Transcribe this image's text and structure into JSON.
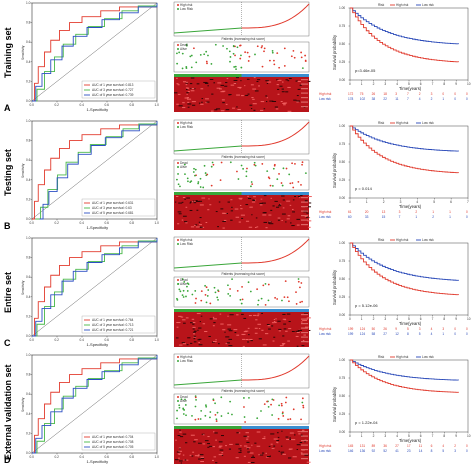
{
  "rows": [
    {
      "letter": "A",
      "label": "Training set",
      "roc": {
        "xlabel": "1-Specificity",
        "ylabel": "Sensitivity",
        "legend": [
          "AUC of 1 year survival: 0.813",
          "AUC of 3 year survival: 0.727",
          "AUC of 5 year survival: 0.739"
        ]
      },
      "risk": {
        "legend1": [
          "High risk",
          "Low Risk"
        ],
        "legend2": [
          "Dead",
          "Alive"
        ],
        "xlabel": "Patients (increasing risk score)"
      },
      "km": {
        "legend_title": "Risk",
        "legend": [
          "High risk",
          "Low risk"
        ],
        "pvalue": "p=3.46e-05",
        "xlabel": "Time(years)",
        "ylabel": "Survival probability",
        "yticks": [
          "0.00",
          "0.25",
          "0.50",
          "0.75",
          "1.00"
        ],
        "xticks": [
          "0",
          "1",
          "2",
          "3",
          "4",
          "5",
          "6",
          "7",
          "8",
          "9",
          "10"
        ],
        "table_labels": [
          "High risk",
          "Low risk"
        ],
        "table_high": [
          "172",
          "75",
          "26",
          "18",
          "3",
          "7",
          "2",
          "3",
          "0",
          "0",
          "0"
        ],
        "table_low": [
          "178",
          "102",
          "38",
          "22",
          "11",
          "7",
          "4",
          "2",
          "1",
          "0",
          "0"
        ]
      }
    },
    {
      "letter": "B",
      "label": "Testing set",
      "roc": {
        "xlabel": "1-Specificity",
        "ylabel": "Sensitivity",
        "legend": [
          "AUC of 1 year survival: 0.631",
          "AUC of 3 year survival: 0.63",
          "AUC of 5 year survival: 0.681"
        ]
      },
      "risk": {
        "legend1": [
          "High risk",
          "Low Risk"
        ],
        "legend2": [
          "Dead",
          "Alive"
        ],
        "xlabel": "Patients (increasing risk score)"
      },
      "km": {
        "legend_title": "Risk",
        "legend": [
          "High risk",
          "Low risk"
        ],
        "pvalue": "p = 0.014",
        "xlabel": "Time(years)",
        "ylabel": "Survival probability",
        "yticks": [
          "0.00",
          "0.25",
          "0.50",
          "0.75",
          "1.00"
        ],
        "xticks": [
          "0",
          "1",
          "2",
          "3",
          "4",
          "5",
          "6",
          "7"
        ],
        "table_labels": [
          "High risk",
          "Low risk"
        ],
        "table_high": [
          "61",
          "20",
          "13",
          "3",
          "2",
          "1",
          "1",
          "0"
        ],
        "table_low": [
          "60",
          "33",
          "15",
          "7",
          "1",
          "2",
          "1",
          "0"
        ]
      }
    },
    {
      "letter": "C",
      "label": "Entire set",
      "roc": {
        "xlabel": "1-Specificity",
        "ylabel": "Sensitivity",
        "legend": [
          "AUC of 1 year survival: 0.764",
          "AUC of 3 year survival: 0.713",
          "AUC of 5 year survival: 0.721"
        ]
      },
      "risk": {
        "legend1": [
          "High risk",
          "Low Risk"
        ],
        "legend2": [
          "Dead",
          "Alive"
        ],
        "xlabel": "Patients (increasing risk score)"
      },
      "km": {
        "legend_title": "Risk",
        "legend": [
          "High risk",
          "Low risk"
        ],
        "pvalue": "p = 5.12e-06",
        "xlabel": "Time(years)",
        "ylabel": "Survival probability",
        "yticks": [
          "0.00",
          "0.25",
          "0.50",
          "0.75",
          "1.00"
        ],
        "xticks": [
          "0",
          "1",
          "2",
          "3",
          "4",
          "5",
          "6",
          "7",
          "8",
          "9",
          "10"
        ],
        "table_labels": [
          "High risk",
          "Low risk"
        ],
        "table_high": [
          "199",
          "124",
          "50",
          "26",
          "9",
          "5",
          "3",
          "4",
          "3",
          "0",
          "0"
        ],
        "table_low": [
          "199",
          "124",
          "58",
          "27",
          "12",
          "8",
          "5",
          "4",
          "1",
          "0",
          "0"
        ]
      }
    },
    {
      "letter": "D",
      "label": "External validation set",
      "roc": {
        "xlabel": "1-Specificity",
        "ylabel": "Sensitivity",
        "legend": [
          "AUC of 1 year survival: 0.704",
          "AUC of 3 year survival: 0.708",
          "AUC of 5 year survival: 0.705"
        ]
      },
      "risk": {
        "legend1": [
          "High risk",
          "Low Risk"
        ],
        "legend2": [
          "Dead",
          "Alive"
        ],
        "xlabel": "Patients (increasing risk score)"
      },
      "km": {
        "legend_title": "Risk",
        "legend": [
          "High risk",
          "Low risk"
        ],
        "pvalue": "p = 1.22e-04",
        "xlabel": "Time(years)",
        "ylabel": "Survival probability",
        "yticks": [
          "0.00",
          "0.25",
          "0.50",
          "0.75",
          "1.00"
        ],
        "xticks": [
          "0",
          "1",
          "2",
          "3",
          "4",
          "5",
          "6",
          "7",
          "8",
          "9",
          "10"
        ],
        "table_labels": [
          "High risk",
          "Low risk"
        ],
        "table_high": [
          "145",
          "131",
          "89",
          "36",
          "27",
          "17",
          "11",
          "6",
          "4",
          "2",
          "0"
        ],
        "table_low": [
          "146",
          "136",
          "92",
          "52",
          "41",
          "23",
          "14",
          "8",
          "5",
          "3",
          "0"
        ]
      }
    }
  ],
  "colors": {
    "high": "#e0382b",
    "low": "#2848b8",
    "green": "#3aa63a",
    "roc_red": "#e23b2e",
    "roc_green": "#48b848",
    "roc_blue": "#2c4fc4"
  }
}
